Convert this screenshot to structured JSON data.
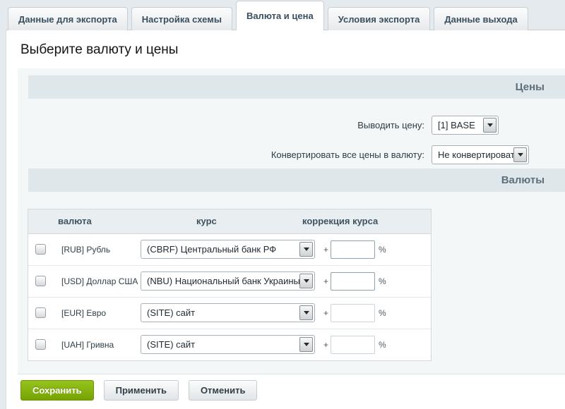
{
  "tabs": [
    {
      "label": "Данные для экспорта",
      "active": false
    },
    {
      "label": "Настройка схемы",
      "active": false
    },
    {
      "label": "Валюта и цена",
      "active": true
    },
    {
      "label": "Условия экспорта",
      "active": false
    },
    {
      "label": "Данные выхода",
      "active": false
    }
  ],
  "page_title": "Выберите валюту и цены",
  "prices_section": {
    "header": "Цены",
    "fields": [
      {
        "label": "Выводить цену:",
        "value": "[1] BASE"
      },
      {
        "label": "Конвертировать все цены в валюту:",
        "value": "Не конвертировать"
      }
    ]
  },
  "currencies_section": {
    "header": "Валюты",
    "table": {
      "columns": [
        "валюта",
        "курс",
        "коррекция курса"
      ],
      "rows": [
        {
          "checked": false,
          "currency": "[RUB] Рубль",
          "rate": "(CBRF) Центральный банк РФ",
          "plus": "+",
          "correction": "",
          "percent": "%",
          "input_disabled": false
        },
        {
          "checked": false,
          "currency": "[USD] Доллар США",
          "rate": "(NBU) Национальный банк Украины",
          "plus": "+",
          "correction": "",
          "percent": "%",
          "input_disabled": false
        },
        {
          "checked": false,
          "currency": "[EUR] Евро",
          "rate": "(SITE) сайт",
          "plus": "+",
          "correction": "",
          "percent": "%",
          "input_disabled": true
        },
        {
          "checked": false,
          "currency": "[UAH] Гривна",
          "rate": "(SITE) сайт",
          "plus": "+",
          "correction": "",
          "percent": "%",
          "input_disabled": true
        }
      ]
    }
  },
  "actions": {
    "save": "Сохранить",
    "apply": "Применить",
    "cancel": "Отменить"
  },
  "colors": {
    "accent_green": "#76a303",
    "section_header_bg": "#e0e7ea",
    "page_bg": "#e4eaed",
    "panel_bg": "#ffffff",
    "inner_bg": "#f4f7f8"
  }
}
